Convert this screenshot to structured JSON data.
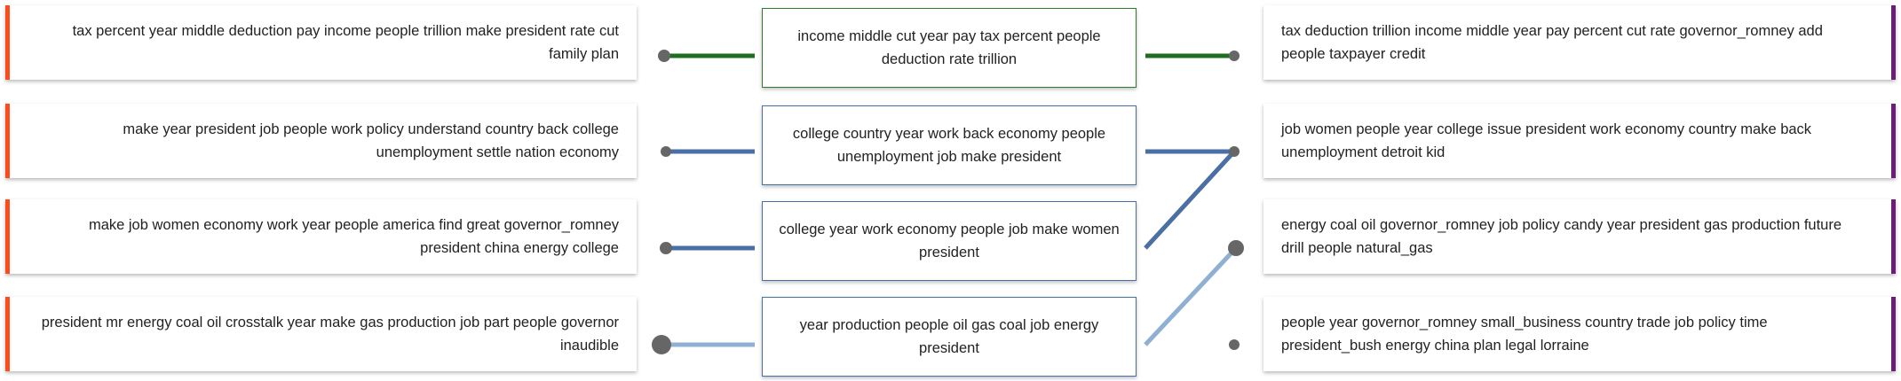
{
  "colors": {
    "left_accent": "#ff4a1c",
    "right_accent": "#6b1d78",
    "link_green": "#1f6e1f",
    "link_blue": "#4a6fa5",
    "link_light_blue": "#8fb0d3",
    "node_gray": "#666666"
  },
  "left_topics": [
    {
      "text": "tax percent year middle deduction pay income people trillion make president rate cut family plan"
    },
    {
      "text": "make year president job people work policy understand country back college unemployment settle nation economy"
    },
    {
      "text": "make job women economy work year people america find great governor_romney president china energy college"
    },
    {
      "text": "president mr energy coal oil crosstalk year make gas production job part people governor inaudible"
    }
  ],
  "middle_topics": [
    {
      "text": "income middle cut year pay tax percent people deduction rate trillion",
      "border_color": "#2e7d2e"
    },
    {
      "text": "college country year work back economy people unemployment job make president",
      "border_color": "#4a6fa5"
    },
    {
      "text": "college year work economy people job make women president",
      "border_color": "#4a6fa5"
    },
    {
      "text": "year production people oil gas coal job energy president",
      "border_color": "#4a6fa5"
    }
  ],
  "right_topics": [
    {
      "text": "tax deduction trillion income middle year pay percent cut rate governor_romney add people taxpayer credit"
    },
    {
      "text": "job women people year college issue president work economy country make back unemployment detroit kid"
    },
    {
      "text": "energy coal oil governor_romney job policy candy year president gas production future drill people natural_gas"
    },
    {
      "text": "people year governor_romney small_business country trade job policy time president_bush energy china plan legal lorraine"
    }
  ]
}
